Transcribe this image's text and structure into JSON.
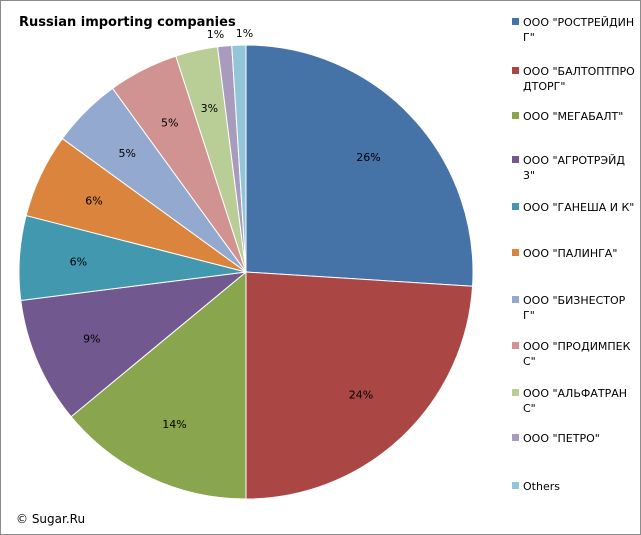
{
  "chart_data": {
    "type": "pie",
    "title": "Russian importing companies",
    "categories": [
      "ООО \"РОСТРЕЙДИНГ\"",
      "ООО \"БАЛТОПТПРОДТОРГ\"",
      "ООО \"МЕГАБАЛТ\"",
      "ООО \"АГРОТРЭЙД 3\"",
      "ООО \"ГАНЕША И К\"",
      "ООО \"ПАЛИНГА\"",
      "ООО \"БИЗНЕСТОРГ\"",
      "ООО \"ПРОДИМПЕКС\"",
      "ООО \"АЛЬФАТРАНС\"",
      "ООО \"ПЕТРО\"",
      "Others"
    ],
    "legend_labels": [
      "ООО \"РОСТРЕЙДИНГ\"",
      "ООО \"БАЛТОПТПРОДТОРГ\"",
      "ООО \"МЕГАБАЛТ\"",
      "ООО \"АГРОТРЭЙД 3\"",
      "ООО \"ГАНЕША  И  К\"",
      "ООО \"ПАЛИНГА\"",
      "ООО \"БИЗНЕСТОРГ\"",
      "ООО \"ПРОДИМПЕКС\"",
      "ООО \"АЛЬФАТРАНС\"",
      "ООО \"ПЕТРО\"",
      "Others"
    ],
    "values": [
      26,
      24,
      14,
      9,
      6,
      6,
      5,
      5,
      3,
      1,
      1
    ],
    "labels": [
      "26%",
      "24%",
      "14%",
      "9%",
      "6%",
      "6%",
      "5%",
      "5%",
      "3%",
      "1%",
      "1%"
    ],
    "colors": [
      "#4572A7",
      "#AA4643",
      "#89A54E",
      "#71588F",
      "#4198AF",
      "#DB843D",
      "#93A9CF",
      "#D19392",
      "#B9CD96",
      "#A99BBD",
      "#92C5D8"
    ],
    "legend_position": "right",
    "start_angle_deg": 0,
    "direction": "clockwise"
  },
  "footer": {
    "copyright": "© Sugar.Ru"
  }
}
